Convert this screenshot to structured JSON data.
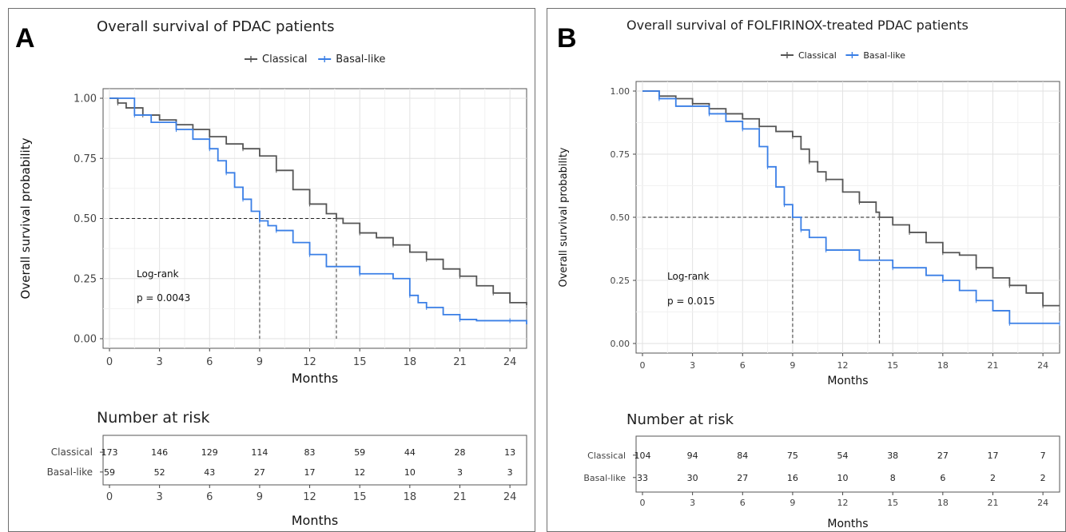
{
  "colors": {
    "classical": "#555555",
    "basal_like": "#3a7fe6"
  },
  "legend": {
    "classical": "Classical",
    "basal_like": "Basal-like"
  },
  "chart_data": [
    {
      "panel": "A",
      "type": "line",
      "title": "Overall survival of PDAC patients",
      "xlabel": "Months",
      "ylabel": "Overall survival probability",
      "xlim": [
        0,
        25
      ],
      "ylim": [
        0,
        1
      ],
      "x_ticks": [
        0,
        3,
        6,
        9,
        12,
        15,
        18,
        21,
        24
      ],
      "y_ticks": [
        "0.00",
        "0.25",
        "0.50",
        "0.75",
        "1.00"
      ],
      "annotation": [
        "Log-rank",
        "p = 0.0043"
      ],
      "median_survival": {
        "Basal-like": 9.0,
        "Classical": 13.6
      },
      "series": [
        {
          "name": "Classical",
          "color": "#555555",
          "x": [
            0,
            0.5,
            1,
            2,
            3,
            4,
            5,
            6,
            7,
            8,
            9,
            10,
            11,
            12,
            13,
            13.6,
            14,
            15,
            16,
            17,
            18,
            19,
            20,
            21,
            22,
            23,
            24,
            25
          ],
          "y": [
            1.0,
            0.98,
            0.96,
            0.93,
            0.91,
            0.89,
            0.87,
            0.84,
            0.81,
            0.79,
            0.76,
            0.7,
            0.62,
            0.56,
            0.52,
            0.5,
            0.48,
            0.44,
            0.42,
            0.39,
            0.36,
            0.33,
            0.29,
            0.26,
            0.22,
            0.19,
            0.15,
            0.14
          ]
        },
        {
          "name": "Basal-like",
          "color": "#3a7fe6",
          "x": [
            0,
            1.5,
            2.5,
            4,
            5,
            6,
            6.5,
            7,
            7.5,
            8,
            8.5,
            9,
            9.5,
            10,
            11,
            12,
            13,
            15,
            17,
            18,
            18.5,
            19,
            20,
            21,
            22,
            24,
            25
          ],
          "y": [
            1.0,
            0.93,
            0.9,
            0.87,
            0.83,
            0.79,
            0.74,
            0.69,
            0.63,
            0.58,
            0.53,
            0.49,
            0.47,
            0.45,
            0.4,
            0.35,
            0.3,
            0.27,
            0.25,
            0.18,
            0.15,
            0.13,
            0.1,
            0.08,
            0.075,
            0.075,
            0.06
          ]
        }
      ],
      "risk_table": {
        "title": "Number at risk",
        "xlabel": "Months",
        "rows": [
          {
            "label": "Classical",
            "values": [
              173,
              146,
              129,
              114,
              83,
              59,
              44,
              28,
              13
            ]
          },
          {
            "label": "Basal-like",
            "values": [
              59,
              52,
              43,
              27,
              17,
              12,
              10,
              3,
              3
            ]
          }
        ]
      }
    },
    {
      "panel": "B",
      "type": "line",
      "title": "Overall survival of FOLFIRINOX-treated PDAC patients",
      "xlabel": "Months",
      "ylabel": "Overall survival probability",
      "xlim": [
        0,
        25
      ],
      "ylim": [
        0,
        1
      ],
      "x_ticks": [
        0,
        3,
        6,
        9,
        12,
        15,
        18,
        21,
        24
      ],
      "y_ticks": [
        "0.00",
        "0.25",
        "0.50",
        "0.75",
        "1.00"
      ],
      "annotation": [
        "Log-rank",
        "p = 0.015"
      ],
      "median_survival": {
        "Basal-like": 9.0,
        "Classical": 14.2
      },
      "series": [
        {
          "name": "Classical",
          "color": "#555555",
          "x": [
            0,
            1,
            2,
            3,
            4,
            5,
            6,
            7,
            8,
            9,
            9.5,
            10,
            10.5,
            11,
            12,
            13,
            14,
            14.2,
            15,
            16,
            17,
            18,
            19,
            20,
            21,
            22,
            23,
            24,
            25
          ],
          "y": [
            1.0,
            0.98,
            0.97,
            0.95,
            0.93,
            0.91,
            0.89,
            0.86,
            0.84,
            0.82,
            0.77,
            0.72,
            0.68,
            0.65,
            0.6,
            0.56,
            0.52,
            0.5,
            0.47,
            0.44,
            0.4,
            0.36,
            0.35,
            0.3,
            0.26,
            0.23,
            0.2,
            0.15,
            0.15
          ]
        },
        {
          "name": "Basal-like",
          "color": "#3a7fe6",
          "x": [
            0,
            1,
            2,
            4,
            5,
            6,
            7,
            7.5,
            8,
            8.5,
            9,
            9.5,
            10,
            11,
            13,
            15,
            17,
            18,
            19,
            20,
            21,
            22,
            24,
            25
          ],
          "y": [
            1.0,
            0.97,
            0.94,
            0.91,
            0.88,
            0.85,
            0.78,
            0.7,
            0.62,
            0.55,
            0.5,
            0.45,
            0.42,
            0.37,
            0.33,
            0.3,
            0.27,
            0.25,
            0.21,
            0.17,
            0.13,
            0.08,
            0.08,
            0.08
          ]
        }
      ],
      "risk_table": {
        "title": "Number at risk",
        "xlabel": "Months",
        "rows": [
          {
            "label": "Classical",
            "values": [
              104,
              94,
              84,
              75,
              54,
              38,
              27,
              17,
              7
            ]
          },
          {
            "label": "Basal-like",
            "values": [
              33,
              30,
              27,
              16,
              10,
              8,
              6,
              2,
              2
            ]
          }
        ]
      }
    }
  ]
}
